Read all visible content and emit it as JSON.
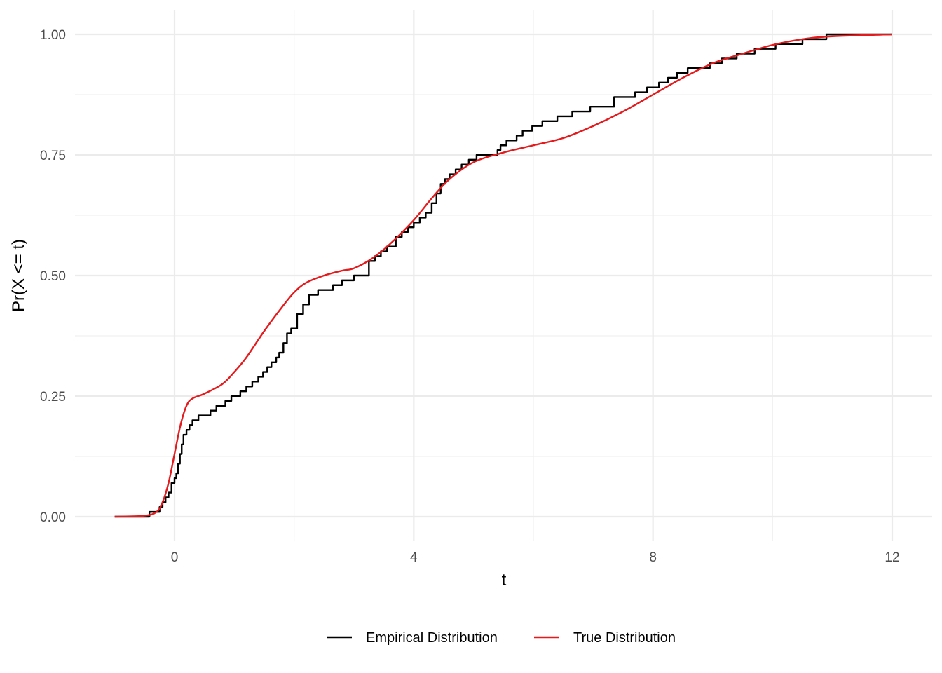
{
  "chart_data": {
    "type": "line",
    "xlabel": "t",
    "ylabel": "Pr(X <= t)",
    "xlim": [
      -1.0,
      12.0
    ],
    "ylim": [
      0.0,
      1.0
    ],
    "x_ticks": [
      0,
      4,
      8,
      12
    ],
    "x_tick_labels": [
      "0",
      "4",
      "8",
      "12"
    ],
    "y_ticks": [
      0.0,
      0.25,
      0.5,
      0.75,
      1.0
    ],
    "y_tick_labels": [
      "0.00",
      "0.25",
      "0.50",
      "0.75",
      "1.00"
    ],
    "grid": true,
    "legend_position": "bottom",
    "series": [
      {
        "name": "Empirical Distribution",
        "color": "#000000",
        "step": true,
        "x": [
          -1.0,
          -0.42,
          -0.35,
          -0.25,
          -0.2,
          -0.15,
          -0.1,
          -0.05,
          0.0,
          0.03,
          0.06,
          0.09,
          0.12,
          0.15,
          0.2,
          0.25,
          0.3,
          0.4,
          0.6,
          0.7,
          0.85,
          0.95,
          1.1,
          1.2,
          1.3,
          1.4,
          1.48,
          1.55,
          1.62,
          1.7,
          1.75,
          1.82,
          1.88,
          1.95,
          2.05,
          2.15,
          2.25,
          2.4,
          2.65,
          2.8,
          3.0,
          3.25,
          3.35,
          3.45,
          3.55,
          3.7,
          3.8,
          3.9,
          4.0,
          4.1,
          4.2,
          4.3,
          4.38,
          4.45,
          4.52,
          4.6,
          4.7,
          4.8,
          4.92,
          5.05,
          5.4,
          5.45,
          5.55,
          5.72,
          5.82,
          5.98,
          6.15,
          6.4,
          6.65,
          6.95,
          7.35,
          7.7,
          7.9,
          8.1,
          8.25,
          8.4,
          8.58,
          8.95,
          9.15,
          9.4,
          9.7,
          10.05,
          10.5,
          10.9,
          12.0
        ],
        "y": [
          0.0,
          0.01,
          0.01,
          0.02,
          0.03,
          0.04,
          0.05,
          0.07,
          0.08,
          0.09,
          0.11,
          0.13,
          0.15,
          0.17,
          0.18,
          0.19,
          0.2,
          0.21,
          0.22,
          0.23,
          0.24,
          0.25,
          0.26,
          0.27,
          0.28,
          0.29,
          0.3,
          0.31,
          0.32,
          0.33,
          0.34,
          0.36,
          0.38,
          0.39,
          0.42,
          0.44,
          0.46,
          0.47,
          0.48,
          0.49,
          0.5,
          0.53,
          0.54,
          0.55,
          0.56,
          0.58,
          0.59,
          0.6,
          0.61,
          0.62,
          0.63,
          0.65,
          0.67,
          0.69,
          0.7,
          0.71,
          0.72,
          0.73,
          0.74,
          0.75,
          0.76,
          0.77,
          0.78,
          0.79,
          0.8,
          0.81,
          0.82,
          0.83,
          0.84,
          0.85,
          0.87,
          0.88,
          0.89,
          0.9,
          0.91,
          0.92,
          0.93,
          0.94,
          0.95,
          0.96,
          0.97,
          0.98,
          0.99,
          1.0,
          1.0
        ]
      },
      {
        "name": "True Distribution",
        "color": "#e41a1c",
        "step": false,
        "x": [
          -1.0,
          -0.5,
          -0.3,
          -0.2,
          -0.1,
          0.0,
          0.1,
          0.2,
          0.3,
          0.5,
          0.8,
          1.0,
          1.2,
          1.5,
          1.8,
          2.0,
          2.2,
          2.5,
          2.8,
          3.0,
          3.3,
          3.6,
          4.0,
          4.3,
          4.6,
          5.0,
          5.5,
          6.0,
          6.5,
          7.0,
          7.5,
          8.0,
          8.5,
          9.0,
          9.5,
          10.0,
          10.5,
          11.0,
          12.0
        ],
        "y": [
          0.0,
          0.002,
          0.01,
          0.03,
          0.07,
          0.13,
          0.19,
          0.23,
          0.245,
          0.255,
          0.275,
          0.3,
          0.33,
          0.385,
          0.435,
          0.465,
          0.485,
          0.5,
          0.51,
          0.515,
          0.535,
          0.565,
          0.615,
          0.66,
          0.7,
          0.735,
          0.755,
          0.77,
          0.785,
          0.81,
          0.84,
          0.875,
          0.91,
          0.94,
          0.96,
          0.978,
          0.99,
          0.996,
          1.0
        ]
      }
    ]
  }
}
